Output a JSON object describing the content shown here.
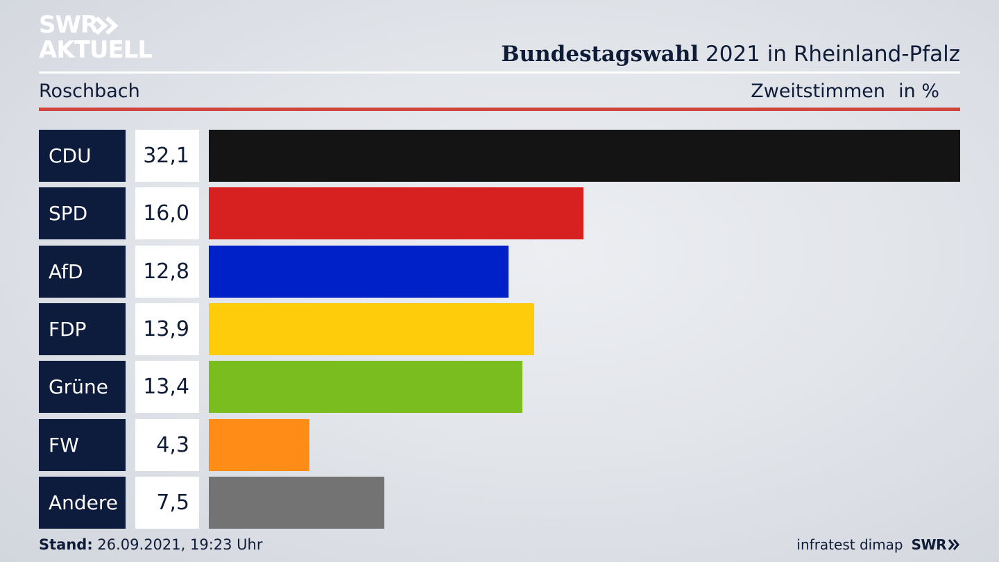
{
  "logo": {
    "line1": "SWR",
    "line2": "AKTUELL",
    "icon": "double-chevron-icon"
  },
  "header": {
    "title_bold": "Bundestagswahl",
    "title_rest": " 2021 in Rheinland-Pfalz",
    "subtitle": "Roschbach",
    "vote_type": "Zweitstimmen",
    "unit": "in %"
  },
  "colors": {
    "accent_rule": "#d0463f",
    "label_background": "#0d1b3c"
  },
  "chart_data": {
    "type": "bar",
    "orientation": "horizontal",
    "categories": [
      "CDU",
      "SPD",
      "AfD",
      "FDP",
      "Grüne",
      "FW",
      "Andere"
    ],
    "values": [
      32.1,
      16.0,
      12.8,
      13.9,
      13.4,
      4.3,
      7.5
    ],
    "value_labels": [
      "32,1",
      "16,0",
      "12,8",
      "13,9",
      "13,4",
      "4,3",
      "7,5"
    ],
    "colors": [
      "#141414",
      "#d72020",
      "#0020c8",
      "#fecc0a",
      "#7abd1e",
      "#ff8c16",
      "#737373"
    ],
    "xlim": [
      0,
      32.1
    ],
    "grid": false,
    "legend": "none"
  },
  "footer": {
    "stand_label": "Stand:",
    "stand_value": " 26.09.2021, 19:23 Uhr",
    "source": "infratest dimap",
    "broadcaster": "SWR"
  }
}
